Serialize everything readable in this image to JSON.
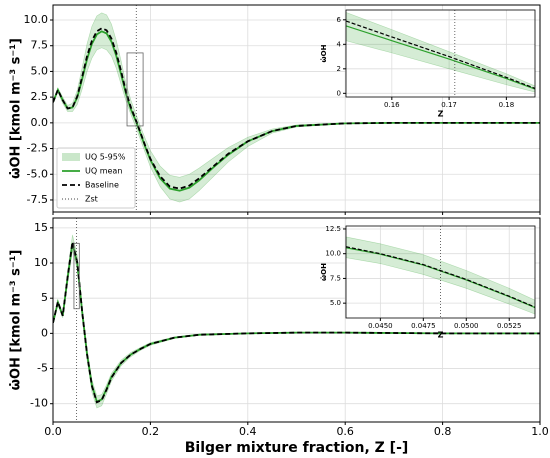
{
  "chart_data": [
    {
      "type": "line",
      "y_label": "ω̇OH [kmol m⁻³ s⁻¹]",
      "xlim": [
        0,
        1
      ],
      "ylim": [
        -8.67,
        11.46
      ],
      "xticks": [
        0,
        0.2,
        0.4,
        0.6,
        0.8,
        1
      ],
      "show_xtick_labels": false,
      "yticks": [
        {
          "value": -7.5,
          "label": "-7.5"
        },
        {
          "value": -5,
          "label": "-5.0"
        },
        {
          "value": -2.5,
          "label": "-2.5"
        },
        {
          "value": 0,
          "label": "0.0"
        },
        {
          "value": 2.5,
          "label": "2.5"
        },
        {
          "value": 5,
          "label": "5.0"
        },
        {
          "value": 7.5,
          "label": "7.5"
        },
        {
          "value": 10,
          "label": "10.0"
        }
      ],
      "grid": true,
      "legend": "lower left",
      "zst": 0.171,
      "zst_name": "Zst",
      "x": [
        0,
        0.01,
        0.02,
        0.03,
        0.04,
        0.05,
        0.06,
        0.07,
        0.08,
        0.09,
        0.1,
        0.11,
        0.12,
        0.13,
        0.14,
        0.15,
        0.16,
        0.17,
        0.18,
        0.19,
        0.2,
        0.22,
        0.24,
        0.26,
        0.28,
        0.3,
        0.33,
        0.36,
        0.4,
        0.45,
        0.5,
        0.6,
        0.7,
        0.8,
        0.9,
        1.0
      ],
      "series": [
        {
          "name": "UQ 5-95%",
          "color": "#2ca02c",
          "kind": "band",
          "upper": [
            2.1,
            3.4,
            2.5,
            1.7,
            1.9,
            3.2,
            5.4,
            7.7,
            9.4,
            10.4,
            10.7,
            10.5,
            9.6,
            8.0,
            6.0,
            3.8,
            2.2,
            0.9,
            -0.4,
            -1.6,
            -2.7,
            -4.2,
            -5.1,
            -5.3,
            -5.0,
            -4.4,
            -3.4,
            -2.4,
            -1.4,
            -0.6,
            -0.2,
            0,
            0,
            0,
            0,
            0
          ],
          "lower": [
            1.9,
            3.0,
            1.9,
            1.1,
            1.1,
            1.8,
            3.3,
            5.0,
            6.3,
            7.1,
            7.3,
            7.1,
            6.5,
            5.3,
            3.7,
            2.1,
            0.8,
            -0.4,
            -1.7,
            -3.0,
            -4.3,
            -6.2,
            -7.4,
            -7.7,
            -7.4,
            -6.6,
            -5.2,
            -3.8,
            -2.3,
            -1.0,
            -0.4,
            -0.1,
            0,
            0,
            0,
            0
          ]
        },
        {
          "name": "UQ mean",
          "color": "#2ca02c",
          "values": [
            2.0,
            3.2,
            2.2,
            1.4,
            1.5,
            2.5,
            4.3,
            6.2,
            7.7,
            8.6,
            8.9,
            8.7,
            7.9,
            6.5,
            4.7,
            2.8,
            1.3,
            0.2,
            -1.1,
            -2.4,
            -3.6,
            -5.4,
            -6.4,
            -6.6,
            -6.3,
            -5.6,
            -4.3,
            -3.1,
            -1.8,
            -0.8,
            -0.3,
            -0.05,
            0,
            0,
            0,
            0
          ]
        },
        {
          "name": "Baseline",
          "color": "#000000",
          "dash": true,
          "values": [
            2.0,
            3.2,
            2.2,
            1.4,
            1.5,
            2.6,
            4.5,
            6.5,
            8.0,
            8.9,
            9.2,
            9.0,
            8.2,
            6.8,
            5.0,
            3.0,
            1.5,
            0.3,
            -1.0,
            -2.3,
            -3.5,
            -5.2,
            -6.2,
            -6.4,
            -6.1,
            -5.4,
            -4.2,
            -3.0,
            -1.8,
            -0.8,
            -0.3,
            -0.05,
            0,
            0,
            0,
            0
          ]
        }
      ]
    },
    {
      "type": "line",
      "x_label": "Z",
      "y_label": "ω̇OH",
      "xlim": [
        0.152,
        0.185
      ],
      "ylim": [
        -0.3,
        6.8
      ],
      "xticks": [
        0.16,
        0.17,
        0.18
      ],
      "yticks": [
        0,
        2,
        4,
        6
      ],
      "grid": true,
      "zst": 0.171,
      "x": [
        0.152,
        0.16,
        0.17,
        0.18,
        0.185
      ],
      "series": [
        {
          "color": "#2ca02c",
          "kind": "band",
          "upper": [
            6.6,
            5.2,
            3.4,
            1.6,
            0.6
          ],
          "lower": [
            4.3,
            3.3,
            2.0,
            0.7,
            0.1
          ]
        },
        {
          "color": "#2ca02c",
          "values": [
            5.5,
            4.3,
            2.8,
            1.2,
            0.35
          ]
        },
        {
          "color": "#000000",
          "dash": true,
          "values": [
            5.9,
            4.6,
            3.0,
            1.3,
            0.4
          ]
        }
      ]
    },
    {
      "type": "line",
      "x_label": "Bilger mixture fraction, Z [-]",
      "y_label": "ω̇OH [kmol m⁻³ s⁻¹]",
      "xlim": [
        0,
        1
      ],
      "ylim": [
        -12.6,
        16.4
      ],
      "xticks": [
        {
          "value": 0,
          "label": "0.0"
        },
        0.2,
        0.4,
        0.6,
        0.8,
        {
          "value": 1,
          "label": "1.0"
        }
      ],
      "show_xtick_labels": true,
      "yticks": [
        -10,
        -5,
        0,
        5,
        10,
        15
      ],
      "grid": true,
      "zst": 0.0485,
      "x": [
        0,
        0.01,
        0.02,
        0.03,
        0.04,
        0.05,
        0.06,
        0.07,
        0.08,
        0.09,
        0.1,
        0.11,
        0.12,
        0.14,
        0.16,
        0.18,
        0.2,
        0.25,
        0.3,
        0.4,
        0.5,
        0.6,
        0.7,
        0.8,
        1.0
      ],
      "series": [
        {
          "color": "#2ca02c",
          "kind": "band",
          "upper": [
            1.6,
            4.8,
            2.8,
            8.8,
            14.0,
            11.0,
            3.8,
            -2.2,
            -6.6,
            -8.9,
            -8.7,
            -7.3,
            -5.7,
            -3.8,
            -2.7,
            -2.0,
            -1.3,
            -0.5,
            -0.1,
            0.05,
            0.15,
            0.15,
            0.1,
            0,
            0
          ],
          "lower": [
            1.4,
            4.1,
            2.2,
            7.1,
            11.8,
            9.0,
            2.2,
            -3.8,
            -8.4,
            -10.6,
            -10.3,
            -8.6,
            -6.8,
            -4.6,
            -3.3,
            -2.4,
            -1.7,
            -0.7,
            -0.3,
            -0.05,
            0.05,
            0.05,
            0,
            0,
            0
          ]
        },
        {
          "color": "#2ca02c",
          "values": [
            1.5,
            4.4,
            2.5,
            7.9,
            12.8,
            9.9,
            3.0,
            -3.0,
            -7.4,
            -9.7,
            -9.4,
            -7.9,
            -6.2,
            -4.2,
            -3.0,
            -2.2,
            -1.5,
            -0.6,
            -0.2,
            0,
            0.1,
            0.1,
            0.05,
            0,
            0
          ]
        },
        {
          "color": "#000000",
          "dash": true,
          "values": [
            1.5,
            4.5,
            2.5,
            8.0,
            13.0,
            10.0,
            3.0,
            -3.0,
            -7.5,
            -9.8,
            -9.5,
            -8.0,
            -6.3,
            -4.2,
            -3.0,
            -2.2,
            -1.5,
            -0.6,
            -0.2,
            0,
            0.1,
            0.1,
            0.05,
            0,
            0
          ]
        }
      ]
    },
    {
      "type": "line",
      "x_label": "Z",
      "y_label": "ω̇OH",
      "xlim": [
        0.043,
        0.054
      ],
      "ylim": [
        3.5,
        12.8
      ],
      "xticks": [
        {
          "value": 0.045,
          "label": "0.0450"
        },
        {
          "value": 0.0475,
          "label": "0.0475"
        },
        {
          "value": 0.05,
          "label": "0.0500"
        },
        {
          "value": 0.0525,
          "label": "0.0525"
        }
      ],
      "yticks": [
        {
          "value": 5,
          "label": "5.0"
        },
        {
          "value": 7.5,
          "label": "7.5"
        },
        {
          "value": 10,
          "label": "10.0"
        },
        {
          "value": 12.5,
          "label": "12.5"
        }
      ],
      "grid": true,
      "zst": 0.0485,
      "x": [
        0.043,
        0.045,
        0.0475,
        0.05,
        0.0525,
        0.054
      ],
      "series": [
        {
          "color": "#2ca02c",
          "kind": "band",
          "upper": [
            11.7,
            11.0,
            9.9,
            8.3,
            6.5,
            5.3
          ],
          "lower": [
            9.6,
            9.0,
            7.9,
            6.5,
            4.9,
            3.9
          ]
        },
        {
          "color": "#2ca02c",
          "values": [
            10.6,
            9.95,
            8.85,
            7.35,
            5.65,
            4.55
          ]
        },
        {
          "color": "#000000",
          "dash": true,
          "values": [
            10.7,
            10.0,
            8.9,
            7.4,
            5.7,
            4.6
          ]
        }
      ]
    }
  ]
}
